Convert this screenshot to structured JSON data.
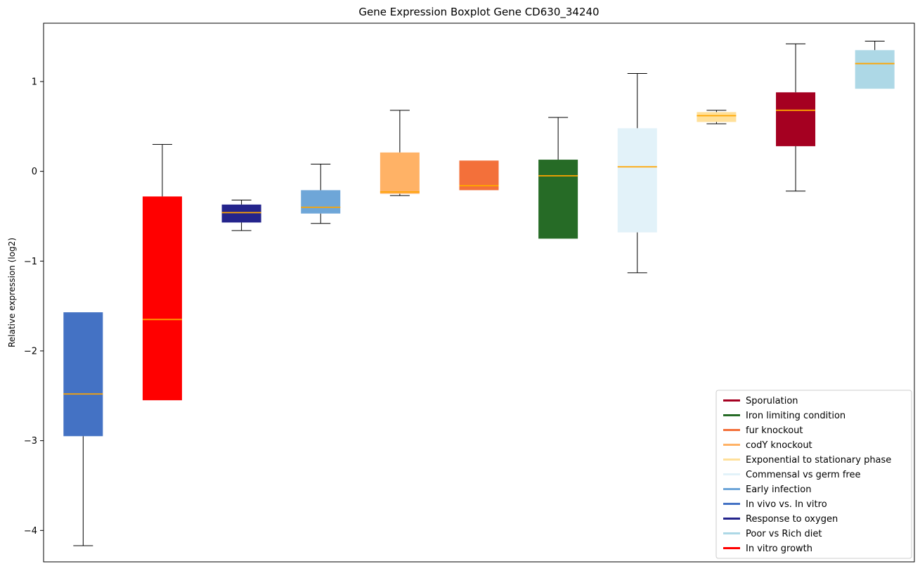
{
  "chart_data": {
    "type": "boxplot",
    "title": "Gene Expression Boxplot Gene CD630_34240",
    "ylabel": "Relative expression (log2)",
    "xlabel": "",
    "ylim": [
      -4.35,
      1.65
    ],
    "yticks": [
      -4,
      -3,
      -2,
      -1,
      0,
      1
    ],
    "grid": false,
    "median_color": "#FFA500",
    "whisker_color": "#000000",
    "legend_position": "lower right",
    "series": [
      {
        "name": "In vivo vs. In vitro",
        "color": "#4472C4",
        "whisker_low": -4.17,
        "q1": -2.95,
        "median": -2.48,
        "q3": -1.57,
        "whisker_high": -1.57
      },
      {
        "name": "In vitro growth",
        "color": "#FF0000",
        "whisker_low": -2.55,
        "q1": -2.55,
        "median": -1.65,
        "q3": -0.28,
        "whisker_high": 0.3
      },
      {
        "name": "Response to oxygen",
        "color": "#24248C",
        "whisker_low": -0.66,
        "q1": -0.57,
        "median": -0.46,
        "q3": -0.37,
        "whisker_high": -0.32
      },
      {
        "name": "Early infection",
        "color": "#6EA6D8",
        "whisker_low": -0.58,
        "q1": -0.47,
        "median": -0.4,
        "q3": -0.21,
        "whisker_high": 0.08
      },
      {
        "name": "codY knockout",
        "color": "#FFB266",
        "whisker_low": -0.27,
        "q1": -0.25,
        "median": -0.23,
        "q3": 0.21,
        "whisker_high": 0.68
      },
      {
        "name": "fur knockout",
        "color": "#F3703A",
        "whisker_low": -0.21,
        "q1": -0.21,
        "median": -0.16,
        "q3": 0.12,
        "whisker_high": 0.12
      },
      {
        "name": "Iron limiting condition",
        "color": "#266B26",
        "whisker_low": -0.75,
        "q1": -0.75,
        "median": -0.05,
        "q3": 0.13,
        "whisker_high": 0.6
      },
      {
        "name": "Commensal vs germ free",
        "color": "#E2F2F9",
        "whisker_low": -1.13,
        "q1": -0.68,
        "median": 0.05,
        "q3": 0.48,
        "whisker_high": 1.09
      },
      {
        "name": "Exponential to stationary phase",
        "color": "#FFE09A",
        "whisker_low": 0.53,
        "q1": 0.55,
        "median": 0.62,
        "q3": 0.66,
        "whisker_high": 0.68
      },
      {
        "name": "Sporulation",
        "color": "#A50021",
        "whisker_low": -0.22,
        "q1": 0.28,
        "median": 0.68,
        "q3": 0.88,
        "whisker_high": 1.42
      },
      {
        "name": "Poor vs Rich diet",
        "color": "#ADD8E6",
        "whisker_low": 0.92,
        "q1": 0.92,
        "median": 1.2,
        "q3": 1.35,
        "whisker_high": 1.45
      }
    ],
    "legend_entries": [
      "Sporulation",
      "Iron limiting condition",
      "fur knockout",
      "codY knockout",
      "Exponential to stationary phase",
      "Commensal vs germ free",
      "Early infection",
      "In vivo vs. In vitro",
      "Response to oxygen",
      "Poor vs Rich diet",
      "In vitro growth"
    ]
  }
}
